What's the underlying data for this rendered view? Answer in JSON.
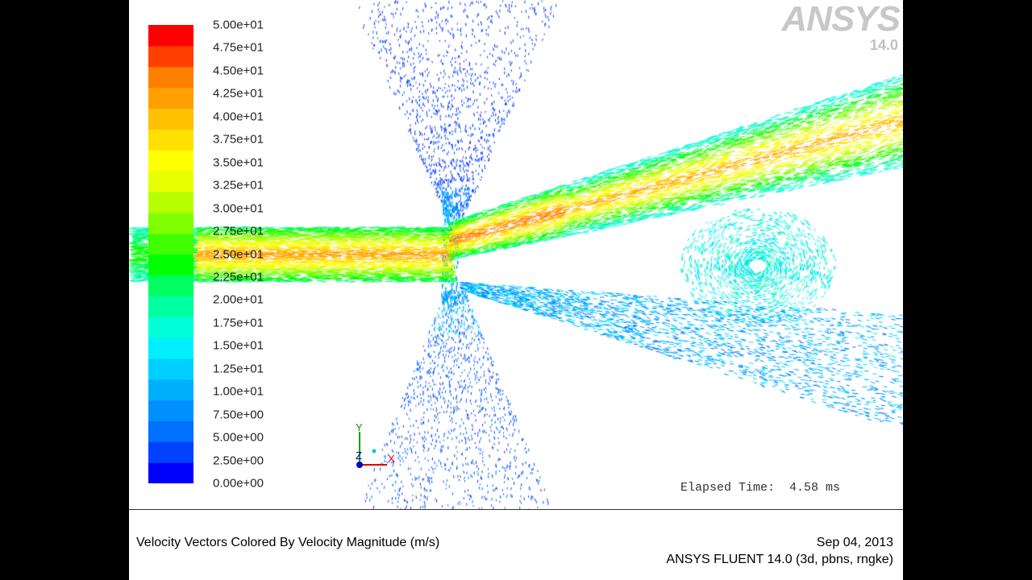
{
  "colorbar": {
    "colors": [
      "#0000ff",
      "#0040ff",
      "#0070ff",
      "#0090ff",
      "#00b0ff",
      "#00d0ff",
      "#00f0ff",
      "#00ffd8",
      "#00ffa0",
      "#00ff60",
      "#00ff00",
      "#40ff00",
      "#80ff00",
      "#b8ff00",
      "#e8ff00",
      "#ffff00",
      "#ffe000",
      "#ffc000",
      "#ffa000",
      "#ff8000",
      "#ff4000",
      "#ff0000"
    ],
    "labels": [
      "5.00e+01",
      "4.75e+01",
      "4.50e+01",
      "4.25e+01",
      "4.00e+01",
      "3.75e+01",
      "3.50e+01",
      "3.25e+01",
      "3.00e+01",
      "2.75e+01",
      "2.50e+01",
      "2.25e+01",
      "2.00e+01",
      "1.75e+01",
      "1.50e+01",
      "1.25e+01",
      "1.00e+01",
      "7.50e+00",
      "5.00e+00",
      "2.50e+00",
      "0.00e+00"
    ]
  },
  "logo": {
    "brand": "ANSYS",
    "version": "14.0"
  },
  "elapsed": "Elapsed Time:  4.58 ms",
  "triad": {
    "y": "Y",
    "z": "Z",
    "x": "X"
  },
  "footer": {
    "title": "Velocity Vectors Colored By Velocity Magnitude (m/s)",
    "date": "Sep 04, 2013",
    "version": "ANSYS FLUENT 14.0 (3d, pbns, rngke)"
  }
}
